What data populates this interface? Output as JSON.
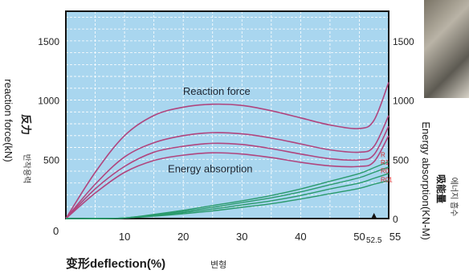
{
  "colors": {
    "plot_background": "#a9d6ef",
    "grid": "#ffffff",
    "frame": "#111111",
    "reaction_curve": "#b0457e",
    "absorption_curve": "#2a9a6c",
    "tick_text": "#222222",
    "series_label": "#d42a2a"
  },
  "chart_data": {
    "type": "line",
    "xlabel": "变形deflection(%)",
    "xlabel_korean": "변형",
    "ylabel_left": "reaction force(kN)",
    "ylabel_left_chinese": "反力",
    "ylabel_left_korean": "반작용력",
    "ylabel_right": "Energy absorption(KN-M)",
    "ylabel_right_chinese": "吸能量",
    "ylabel_right_korean": "에너지 흡수",
    "xlim": [
      0,
      55
    ],
    "ylim": [
      0,
      1750
    ],
    "ylim_right": [
      0,
      1750
    ],
    "x_ticks": [
      "10",
      "20",
      "30",
      "40",
      "50",
      "55"
    ],
    "x_tick_values": [
      10,
      20,
      30,
      40,
      50,
      55
    ],
    "x_origin_label": "0",
    "x_marker": {
      "label": "52.5",
      "value": 52.5
    },
    "y_ticks_left": [
      "500",
      "1000",
      "1500"
    ],
    "y_ticks_right": [
      "0",
      "500",
      "1000",
      "1500"
    ],
    "y_tick_values": [
      500,
      1000,
      1500
    ],
    "grid": true,
    "annotations": {
      "reaction": "Reaction force",
      "absorption": "Energy absorption"
    },
    "series_labels": [
      "R",
      "R1",
      "R0",
      "R01"
    ],
    "x": [
      0,
      5,
      10,
      15,
      20,
      25,
      30,
      35,
      40,
      45,
      50,
      52.5,
      55
    ],
    "reaction_force": [
      {
        "values": [
          0,
          390,
          700,
          870,
          940,
          965,
          955,
          910,
          850,
          790,
          760,
          830,
          1150
        ]
      },
      {
        "values": [
          0,
          290,
          520,
          640,
          700,
          725,
          715,
          680,
          630,
          580,
          560,
          610,
          870
        ]
      },
      {
        "values": [
          0,
          250,
          440,
          560,
          610,
          635,
          625,
          590,
          545,
          505,
          495,
          540,
          780
        ]
      },
      {
        "values": [
          0,
          215,
          390,
          490,
          535,
          555,
          545,
          515,
          475,
          445,
          440,
          480,
          700
        ]
      }
    ],
    "energy_absorption": [
      {
        "values": [
          0,
          0,
          5,
          35,
          70,
          110,
          150,
          195,
          250,
          315,
          380,
          430,
          480
        ]
      },
      {
        "values": [
          0,
          0,
          5,
          30,
          60,
          95,
          135,
          175,
          225,
          285,
          345,
          390,
          435
        ]
      },
      {
        "values": [
          0,
          0,
          5,
          25,
          50,
          80,
          115,
          150,
          195,
          250,
          300,
          340,
          380
        ]
      },
      {
        "values": [
          0,
          0,
          5,
          20,
          40,
          65,
          95,
          125,
          165,
          210,
          255,
          290,
          320
        ]
      }
    ]
  }
}
